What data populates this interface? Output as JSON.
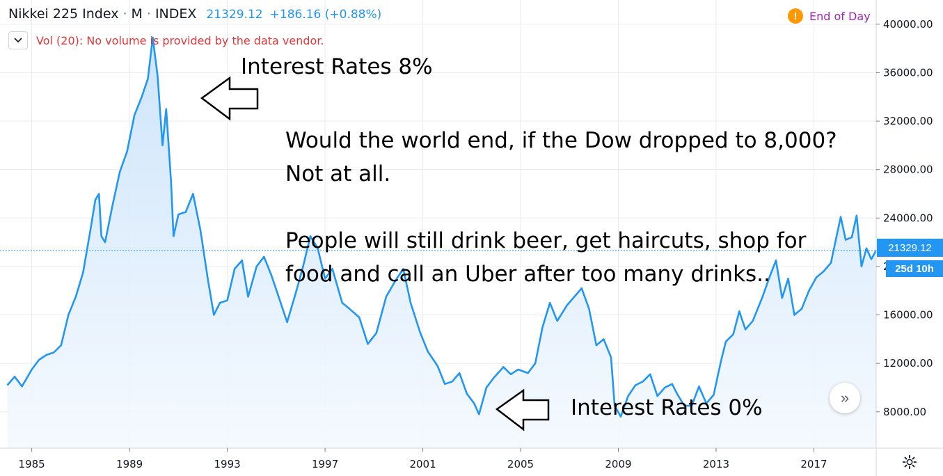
{
  "header": {
    "symbol": "Nikkei 225 Index",
    "interval": "M",
    "exchange": "INDEX",
    "price": "21329.12",
    "change": "+186.16 (+0.88%)"
  },
  "volume": {
    "message": "Vol (20): No volume is provided by the data vendor."
  },
  "end_of_day": {
    "badge": "!",
    "label": "End of Day"
  },
  "annotations": {
    "top": "Interest Rates 8%",
    "bottom": "Interest Rates 0%",
    "main": "Would the world end, if the Dow dropped to 8,000?\nNot at all.\n\nPeople will still drink beer, get haircuts, shop for\nfood and call an Uber after too many drinks.."
  },
  "price_tag": "21329.12",
  "time_tag": "25d 10h",
  "colors": {
    "line": "#2196f3",
    "fill_top": "#c9e2fb",
    "fill_bottom": "#f4f9fe",
    "grid": "#e8ecf1",
    "axis_text": "#131722",
    "price_tag": "#2196f3"
  },
  "chart_data": {
    "type": "area",
    "xlabel": "",
    "ylabel": "",
    "xlim": [
      1983.7,
      2019.55
    ],
    "ylim": [
      5000,
      42000
    ],
    "x_ticks": [
      "1985",
      "1989",
      "1993",
      "1997",
      "2001",
      "2005",
      "2009",
      "2013",
      "2017"
    ],
    "y_ticks": [
      "8000.00",
      "12000.00",
      "16000.00",
      "20000.00",
      "24000.00",
      "28000.00",
      "32000.00",
      "36000.00",
      "40000.00"
    ],
    "last_value": 21329.12,
    "grid": true,
    "series": [
      {
        "values": [
          [
            1984.0,
            10200
          ],
          [
            1984.3,
            10900
          ],
          [
            1984.6,
            10100
          ],
          [
            1985.0,
            11500
          ],
          [
            1985.3,
            12300
          ],
          [
            1985.6,
            12700
          ],
          [
            1985.9,
            12900
          ],
          [
            1986.2,
            13500
          ],
          [
            1986.5,
            16000
          ],
          [
            1986.8,
            17500
          ],
          [
            1987.1,
            19500
          ],
          [
            1987.4,
            23000
          ],
          [
            1987.6,
            25500
          ],
          [
            1987.75,
            26000
          ],
          [
            1987.85,
            22500
          ],
          [
            1988.0,
            22000
          ],
          [
            1988.3,
            25000
          ],
          [
            1988.6,
            27800
          ],
          [
            1988.9,
            29500
          ],
          [
            1989.2,
            32500
          ],
          [
            1989.5,
            34000
          ],
          [
            1989.75,
            35500
          ],
          [
            1989.95,
            38900
          ],
          [
            1990.15,
            35700
          ],
          [
            1990.35,
            30000
          ],
          [
            1990.5,
            33000
          ],
          [
            1990.7,
            27000
          ],
          [
            1990.8,
            22500
          ],
          [
            1991.0,
            24300
          ],
          [
            1991.3,
            24500
          ],
          [
            1991.6,
            26000
          ],
          [
            1991.9,
            23000
          ],
          [
            1992.2,
            19000
          ],
          [
            1992.45,
            16000
          ],
          [
            1992.7,
            17000
          ],
          [
            1993.0,
            17200
          ],
          [
            1993.3,
            19800
          ],
          [
            1993.6,
            20500
          ],
          [
            1993.85,
            17500
          ],
          [
            1994.2,
            20000
          ],
          [
            1994.5,
            20800
          ],
          [
            1994.8,
            19300
          ],
          [
            1995.1,
            17500
          ],
          [
            1995.45,
            15400
          ],
          [
            1995.8,
            17800
          ],
          [
            1996.1,
            20000
          ],
          [
            1996.4,
            22500
          ],
          [
            1996.7,
            21500
          ],
          [
            1997.0,
            19000
          ],
          [
            1997.3,
            19800
          ],
          [
            1997.7,
            17000
          ],
          [
            1998.0,
            16500
          ],
          [
            1998.4,
            15800
          ],
          [
            1998.75,
            13600
          ],
          [
            1999.1,
            14500
          ],
          [
            1999.5,
            17500
          ],
          [
            1999.9,
            18900
          ],
          [
            2000.2,
            19800
          ],
          [
            2000.5,
            17000
          ],
          [
            2000.9,
            14500
          ],
          [
            2001.2,
            13000
          ],
          [
            2001.6,
            11800
          ],
          [
            2001.9,
            10300
          ],
          [
            2002.2,
            10500
          ],
          [
            2002.5,
            11200
          ],
          [
            2002.8,
            9500
          ],
          [
            2003.1,
            8700
          ],
          [
            2003.3,
            7800
          ],
          [
            2003.6,
            10000
          ],
          [
            2003.9,
            10800
          ],
          [
            2004.3,
            11700
          ],
          [
            2004.6,
            11100
          ],
          [
            2004.9,
            11500
          ],
          [
            2005.3,
            11200
          ],
          [
            2005.6,
            12000
          ],
          [
            2005.9,
            15000
          ],
          [
            2006.2,
            17000
          ],
          [
            2006.5,
            15500
          ],
          [
            2006.9,
            16800
          ],
          [
            2007.2,
            17500
          ],
          [
            2007.5,
            18200
          ],
          [
            2007.8,
            16500
          ],
          [
            2008.1,
            13500
          ],
          [
            2008.4,
            14000
          ],
          [
            2008.7,
            12500
          ],
          [
            2008.85,
            8500
          ],
          [
            2009.1,
            7600
          ],
          [
            2009.4,
            9300
          ],
          [
            2009.7,
            10200
          ],
          [
            2010.0,
            10500
          ],
          [
            2010.3,
            11100
          ],
          [
            2010.6,
            9300
          ],
          [
            2010.9,
            10000
          ],
          [
            2011.2,
            10300
          ],
          [
            2011.4,
            9500
          ],
          [
            2011.7,
            8500
          ],
          [
            2012.0,
            8500
          ],
          [
            2012.3,
            10100
          ],
          [
            2012.6,
            8700
          ],
          [
            2012.9,
            9400
          ],
          [
            2013.2,
            12200
          ],
          [
            2013.4,
            13800
          ],
          [
            2013.7,
            14400
          ],
          [
            2013.95,
            16300
          ],
          [
            2014.2,
            14800
          ],
          [
            2014.5,
            15500
          ],
          [
            2014.9,
            17500
          ],
          [
            2015.2,
            19200
          ],
          [
            2015.45,
            20500
          ],
          [
            2015.7,
            17400
          ],
          [
            2015.95,
            19000
          ],
          [
            2016.2,
            16000
          ],
          [
            2016.5,
            16500
          ],
          [
            2016.8,
            18000
          ],
          [
            2017.1,
            19100
          ],
          [
            2017.4,
            19600
          ],
          [
            2017.7,
            20300
          ],
          [
            2017.95,
            22700
          ],
          [
            2018.1,
            24100
          ],
          [
            2018.3,
            22200
          ],
          [
            2018.55,
            22400
          ],
          [
            2018.75,
            24200
          ],
          [
            2018.95,
            20000
          ],
          [
            2019.15,
            21500
          ],
          [
            2019.35,
            20600
          ],
          [
            2019.55,
            21329
          ]
        ]
      }
    ]
  }
}
